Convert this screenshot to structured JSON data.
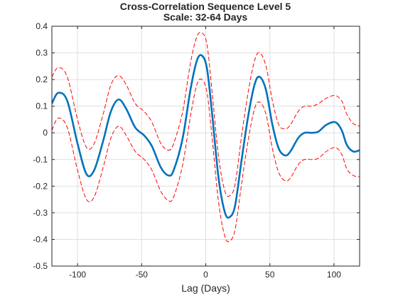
{
  "chart_data": {
    "type": "line",
    "title": "Cross-Correlation Sequence Level 5",
    "subtitle": "Scale: 32-64 Days",
    "xlabel": "Lag (Days)",
    "ylabel": "",
    "xlim": [
      -120,
      120
    ],
    "ylim": [
      -0.5,
      0.4
    ],
    "xticks": [
      -100,
      -50,
      0,
      50,
      100
    ],
    "xtick_labels": [
      "-100",
      "-50",
      "0",
      "50",
      "100"
    ],
    "yticks": [
      -0.5,
      -0.4,
      -0.3,
      -0.2,
      -0.1,
      0,
      0.1,
      0.2,
      0.3,
      0.4
    ],
    "ytick_labels": [
      "-0.5",
      "-0.4",
      "-0.3",
      "-0.2",
      "-0.1",
      "0",
      "0.1",
      "0.2",
      "0.3",
      "0.4"
    ],
    "grid": true,
    "series": [
      {
        "role": "estimate",
        "color": "#0072BD",
        "style": "solid",
        "x": [
          -120,
          -115,
          -108,
          -100,
          -93,
          -87,
          -80,
          -74,
          -68,
          -62,
          -55,
          -48,
          -42,
          -35,
          -29,
          -25,
          -18,
          -12,
          -7,
          -3,
          1,
          5,
          10,
          15,
          19,
          23,
          28,
          33,
          38,
          42,
          47,
          52,
          57,
          62,
          66,
          72,
          77,
          83,
          88,
          94,
          101,
          106,
          110,
          115,
          120
        ],
        "y": [
          0.11,
          0.15,
          0.12,
          -0.04,
          -0.155,
          -0.14,
          -0.03,
          0.08,
          0.125,
          0.09,
          0.02,
          -0.01,
          -0.05,
          -0.13,
          -0.16,
          -0.14,
          -0.02,
          0.16,
          0.27,
          0.29,
          0.24,
          0.07,
          -0.17,
          -0.3,
          -0.315,
          -0.27,
          -0.1,
          0.06,
          0.18,
          0.21,
          0.16,
          0.03,
          -0.06,
          -0.085,
          -0.07,
          -0.02,
          0,
          0,
          0.005,
          0.03,
          0.04,
          0.01,
          -0.045,
          -0.07,
          -0.065
        ]
      },
      {
        "role": "upper-bound",
        "color": "#FF0000",
        "style": "dashed",
        "x": [
          -120,
          -115,
          -108,
          -100,
          -93,
          -87,
          -80,
          -74,
          -68,
          -62,
          -55,
          -48,
          -42,
          -35,
          -29,
          -25,
          -18,
          -12,
          -7,
          -3,
          1,
          5,
          10,
          15,
          19,
          23,
          28,
          33,
          38,
          42,
          47,
          52,
          57,
          62,
          66,
          72,
          77,
          83,
          88,
          94,
          101,
          106,
          110,
          115,
          120
        ],
        "y": [
          0.21,
          0.245,
          0.21,
          0.05,
          -0.055,
          -0.04,
          0.07,
          0.18,
          0.215,
          0.18,
          0.11,
          0.08,
          0.04,
          -0.04,
          -0.065,
          -0.04,
          0.08,
          0.26,
          0.36,
          0.375,
          0.33,
          0.15,
          -0.09,
          -0.22,
          -0.235,
          -0.19,
          -0.01,
          0.15,
          0.27,
          0.3,
          0.25,
          0.12,
          0.03,
          0.015,
          0.03,
          0.08,
          0.1,
          0.1,
          0.11,
          0.13,
          0.14,
          0.12,
          0.07,
          0.035,
          0.025
        ]
      },
      {
        "role": "lower-bound",
        "color": "#FF0000",
        "style": "dashed",
        "x": [
          -120,
          -115,
          -108,
          -100,
          -93,
          -87,
          -80,
          -74,
          -68,
          -62,
          -55,
          -48,
          -42,
          -35,
          -29,
          -25,
          -18,
          -12,
          -7,
          -3,
          1,
          5,
          10,
          15,
          19,
          23,
          28,
          33,
          38,
          42,
          47,
          52,
          57,
          62,
          66,
          72,
          77,
          83,
          88,
          94,
          101,
          106,
          110,
          115,
          120
        ],
        "y": [
          0.01,
          0.055,
          0.02,
          -0.14,
          -0.25,
          -0.24,
          -0.13,
          -0.02,
          0.025,
          -0.01,
          -0.07,
          -0.1,
          -0.14,
          -0.22,
          -0.255,
          -0.24,
          -0.12,
          0.06,
          0.18,
          0.2,
          0.15,
          -0.02,
          -0.26,
          -0.39,
          -0.405,
          -0.36,
          -0.19,
          -0.03,
          0.09,
          0.115,
          0.07,
          -0.06,
          -0.15,
          -0.18,
          -0.17,
          -0.12,
          -0.1,
          -0.1,
          -0.095,
          -0.07,
          -0.055,
          -0.08,
          -0.135,
          -0.16,
          -0.165
        ]
      }
    ]
  }
}
